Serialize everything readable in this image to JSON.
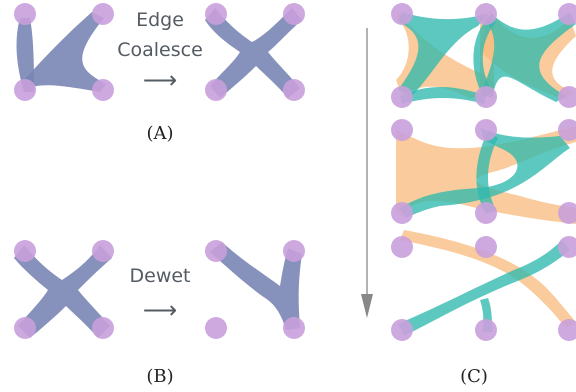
{
  "colors": {
    "node": "#c9a0dc",
    "blue_fill": "#7986b4",
    "orange_fill": "#f8b97c",
    "teal_fill": "#2fb8ad",
    "arrow": "#888888",
    "text": "#555b63"
  },
  "panel_a": {
    "line1": "Edge",
    "line2": "Coalesce",
    "arrow": "⟶",
    "caption": "(A)"
  },
  "panel_b": {
    "label": "Dewet",
    "arrow": "⟶",
    "caption": "(B)"
  },
  "panel_c": {
    "caption": "(C)"
  }
}
